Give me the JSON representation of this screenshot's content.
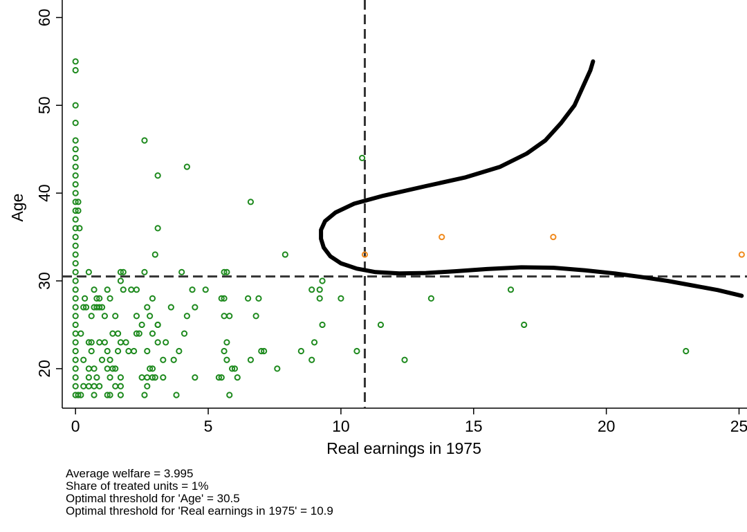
{
  "chart_data": {
    "type": "scatter",
    "xlabel": "Real earnings in 1975",
    "ylabel": "Age",
    "xlim": [
      -0.5,
      25.3
    ],
    "ylim": [
      15.5,
      62
    ],
    "xticks": [
      0,
      5,
      10,
      15,
      20,
      25
    ],
    "yticks": [
      20,
      30,
      40,
      50,
      60
    ],
    "grid": false,
    "colors": {
      "untreated": "#1e8a1e",
      "treated": "#f08a1e",
      "curve": "#000000",
      "threshold": "#333333"
    },
    "thresholds": {
      "x": 10.9,
      "y": 30.5
    },
    "series": [
      {
        "group": "untreated",
        "points": [
          [
            0,
            55
          ],
          [
            0,
            54
          ],
          [
            0,
            50
          ],
          [
            0,
            48
          ],
          [
            0,
            46
          ],
          [
            0,
            45
          ],
          [
            0,
            44
          ],
          [
            0,
            43
          ],
          [
            0,
            42
          ],
          [
            0,
            41
          ],
          [
            0,
            40
          ],
          [
            0,
            39
          ],
          [
            0,
            38
          ],
          [
            0,
            37
          ],
          [
            0,
            36
          ],
          [
            0,
            35
          ],
          [
            0,
            34
          ],
          [
            0,
            33
          ],
          [
            0,
            32
          ],
          [
            0,
            31
          ],
          [
            0,
            30
          ],
          [
            0,
            29
          ],
          [
            0,
            28
          ],
          [
            0,
            27
          ],
          [
            0,
            26
          ],
          [
            0,
            25
          ],
          [
            0,
            24
          ],
          [
            0,
            23
          ],
          [
            0,
            22
          ],
          [
            0,
            21
          ],
          [
            0,
            20
          ],
          [
            0,
            19
          ],
          [
            0,
            18
          ],
          [
            0,
            17
          ],
          [
            0.1,
            39
          ],
          [
            0.1,
            38
          ],
          [
            0.15,
            36
          ],
          [
            0.2,
            24
          ],
          [
            0.1,
            17
          ],
          [
            0.2,
            17
          ],
          [
            0.3,
            18
          ],
          [
            0.3,
            21
          ],
          [
            0.3,
            27
          ],
          [
            0.35,
            28
          ],
          [
            0.4,
            27
          ],
          [
            0.5,
            31
          ],
          [
            0.5,
            23
          ],
          [
            0.5,
            20
          ],
          [
            0.5,
            19
          ],
          [
            0.5,
            18
          ],
          [
            0.6,
            23
          ],
          [
            0.6,
            26
          ],
          [
            0.6,
            22
          ],
          [
            0.7,
            29
          ],
          [
            0.7,
            27
          ],
          [
            0.7,
            18
          ],
          [
            0.7,
            20
          ],
          [
            0.7,
            17
          ],
          [
            0.8,
            19
          ],
          [
            0.8,
            28
          ],
          [
            0.8,
            27
          ],
          [
            0.9,
            28
          ],
          [
            0.9,
            27
          ],
          [
            0.9,
            23
          ],
          [
            0.9,
            18
          ],
          [
            1.0,
            27
          ],
          [
            1.0,
            21
          ],
          [
            1.1,
            23
          ],
          [
            1.1,
            26
          ],
          [
            1.2,
            29
          ],
          [
            1.2,
            22
          ],
          [
            1.2,
            17
          ],
          [
            1.2,
            20
          ],
          [
            1.3,
            17
          ],
          [
            1.3,
            21
          ],
          [
            1.3,
            28
          ],
          [
            1.3,
            19
          ],
          [
            1.4,
            24
          ],
          [
            1.4,
            20
          ],
          [
            1.5,
            26
          ],
          [
            1.5,
            20
          ],
          [
            1.5,
            18
          ],
          [
            1.6,
            24
          ],
          [
            1.6,
            22
          ],
          [
            1.7,
            31
          ],
          [
            1.7,
            30
          ],
          [
            1.7,
            23
          ],
          [
            1.7,
            19
          ],
          [
            1.7,
            18
          ],
          [
            1.7,
            17
          ],
          [
            1.8,
            31
          ],
          [
            1.8,
            29
          ],
          [
            1.9,
            23
          ],
          [
            2.0,
            22
          ],
          [
            2.1,
            29
          ],
          [
            2.2,
            22
          ],
          [
            2.3,
            29
          ],
          [
            2.3,
            26
          ],
          [
            2.3,
            24
          ],
          [
            2.4,
            24
          ],
          [
            2.5,
            25
          ],
          [
            2.5,
            19
          ],
          [
            2.6,
            46
          ],
          [
            2.6,
            31
          ],
          [
            2.6,
            17
          ],
          [
            2.7,
            27
          ],
          [
            2.7,
            22
          ],
          [
            2.7,
            19
          ],
          [
            2.7,
            18
          ],
          [
            2.8,
            26
          ],
          [
            2.8,
            20
          ],
          [
            2.9,
            28
          ],
          [
            2.9,
            24
          ],
          [
            2.9,
            20
          ],
          [
            2.9,
            19
          ],
          [
            3.0,
            33
          ],
          [
            3.0,
            19
          ],
          [
            3.1,
            42
          ],
          [
            3.1,
            36
          ],
          [
            3.1,
            23
          ],
          [
            3.1,
            25
          ],
          [
            3.1,
            25
          ],
          [
            3.3,
            19
          ],
          [
            3.3,
            21
          ],
          [
            3.4,
            23
          ],
          [
            3.6,
            27
          ],
          [
            3.7,
            21
          ],
          [
            3.8,
            17
          ],
          [
            3.9,
            22
          ],
          [
            4.0,
            31
          ],
          [
            4.1,
            24
          ],
          [
            4.2,
            43
          ],
          [
            4.2,
            26
          ],
          [
            4.4,
            29
          ],
          [
            4.5,
            27
          ],
          [
            4.5,
            19
          ],
          [
            4.9,
            29
          ],
          [
            5.4,
            19
          ],
          [
            5.5,
            28
          ],
          [
            5.5,
            19
          ],
          [
            5.6,
            31
          ],
          [
            5.6,
            26
          ],
          [
            5.6,
            22
          ],
          [
            5.6,
            28
          ],
          [
            5.7,
            31
          ],
          [
            5.7,
            23
          ],
          [
            5.7,
            21
          ],
          [
            5.8,
            26
          ],
          [
            5.8,
            17
          ],
          [
            5.9,
            20
          ],
          [
            6.0,
            20
          ],
          [
            6.1,
            19
          ],
          [
            6.5,
            28
          ],
          [
            6.6,
            39
          ],
          [
            6.6,
            21
          ],
          [
            6.8,
            26
          ],
          [
            6.9,
            28
          ],
          [
            7.0,
            22
          ],
          [
            7.1,
            22
          ],
          [
            7.6,
            20
          ],
          [
            7.9,
            33
          ],
          [
            8.5,
            22
          ],
          [
            8.9,
            29
          ],
          [
            8.9,
            21
          ],
          [
            9.0,
            23
          ],
          [
            9.2,
            29
          ],
          [
            9.2,
            28
          ],
          [
            9.3,
            30
          ],
          [
            9.3,
            25
          ],
          [
            10.0,
            28
          ],
          [
            10.6,
            22
          ],
          [
            10.8,
            44
          ],
          [
            11.5,
            25
          ],
          [
            12.4,
            21
          ],
          [
            13.4,
            28
          ],
          [
            16.4,
            29
          ],
          [
            16.9,
            25
          ],
          [
            23.0,
            22
          ]
        ]
      },
      {
        "group": "treated",
        "points": [
          [
            10.9,
            33
          ],
          [
            13.8,
            35
          ],
          [
            18.0,
            35
          ],
          [
            25.1,
            33
          ]
        ]
      }
    ],
    "curve": [
      [
        19.5,
        55
      ],
      [
        19.4,
        54
      ],
      [
        19.1,
        52
      ],
      [
        18.8,
        50
      ],
      [
        18.3,
        48
      ],
      [
        17.7,
        46
      ],
      [
        17.0,
        44.5
      ],
      [
        16.0,
        43
      ],
      [
        14.7,
        41.8
      ],
      [
        13.2,
        40.8
      ],
      [
        11.6,
        39.7
      ],
      [
        10.5,
        38.8
      ],
      [
        9.8,
        37.8
      ],
      [
        9.4,
        36.8
      ],
      [
        9.25,
        35.8
      ],
      [
        9.25,
        34.8
      ],
      [
        9.35,
        33.8
      ],
      [
        9.6,
        32.8
      ],
      [
        10.0,
        32.0
      ],
      [
        10.6,
        31.4
      ],
      [
        11.3,
        31.0
      ],
      [
        12.2,
        30.85
      ],
      [
        13.2,
        30.9
      ],
      [
        14.3,
        31.1
      ],
      [
        15.5,
        31.35
      ],
      [
        16.8,
        31.55
      ],
      [
        18.0,
        31.5
      ],
      [
        19.2,
        31.2
      ],
      [
        20.3,
        30.85
      ],
      [
        21.3,
        30.45
      ],
      [
        22.3,
        30.0
      ],
      [
        23.3,
        29.45
      ],
      [
        24.2,
        28.95
      ],
      [
        25.1,
        28.3
      ]
    ]
  },
  "notes": {
    "welfare": "Average welfare = 3.995",
    "share": "Share of treated units = 1%",
    "thr_age": "Optimal threshold for 'Age' = 30.5",
    "thr_earn": "Optimal threshold for 'Real earnings in 1975' = 10.9"
  }
}
